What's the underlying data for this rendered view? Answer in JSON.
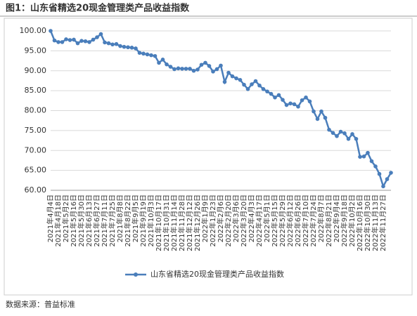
{
  "chart_data": {
    "type": "line",
    "title": "图1：山东省精选20现金管理类产品收益指数",
    "source": "数据来源：普益标准",
    "categories": [
      "2021年4月4日",
      null,
      "2021年4月18日",
      null,
      "2021年5月2日",
      null,
      "2021年5月16日",
      null,
      "2021年5月30日",
      null,
      "2021年6月13日",
      null,
      "2021年6月27日",
      null,
      "2021年7月11日",
      null,
      "2021年7月25日",
      null,
      "2021年8月8日",
      null,
      "2021年8月22日",
      null,
      "2021年9月5日",
      null,
      "2021年9月19日",
      null,
      "2021年10月3日",
      null,
      "2021年10月17日",
      null,
      "2021年10月31日",
      null,
      "2021年11月14日",
      null,
      "2021年11月28日",
      null,
      "2021年12月12日",
      null,
      "2021年12月26日",
      null,
      "2022年1月9日",
      null,
      "2022年1月23日",
      null,
      "2022年2月6日",
      null,
      "2022年2月20日",
      null,
      "2022年3月6日",
      null,
      "2022年3月20日",
      null,
      "2022年4月3日",
      null,
      "2022年4月17日",
      null,
      "2022年5月1日",
      null,
      "2022年5月15日",
      null,
      "2022年5月29日",
      null,
      "2022年6月12日",
      null,
      "2022年6月26日",
      null,
      "2022年7月10日",
      null,
      "2022年7月24日",
      null,
      "2022年8月7日",
      null,
      "2022年8月21日",
      null,
      "2022年9月4日",
      null,
      "2022年9月18日",
      null,
      "2022年10月2日",
      null,
      "2022年10月16日",
      null,
      "2022年10月30日",
      null,
      "2022年11月13日",
      null,
      "2022年11月27日",
      null,
      null
    ],
    "series": [
      {
        "name": "山东省精选20现金管理类产品收益指数",
        "color": "#4a7ebb",
        "values": [
          100.0,
          97.6,
          97.2,
          97.2,
          97.9,
          97.7,
          97.8,
          96.9,
          97.5,
          97.4,
          97.2,
          97.8,
          98.4,
          99.2,
          97.1,
          96.9,
          96.6,
          96.7,
          96.2,
          96.0,
          95.9,
          95.8,
          95.6,
          94.5,
          94.3,
          94.1,
          93.9,
          93.7,
          92.0,
          92.8,
          91.6,
          91.0,
          90.4,
          90.6,
          90.5,
          90.5,
          90.5,
          90.0,
          90.3,
          91.5,
          92.0,
          91.2,
          89.8,
          90.4,
          91.3,
          87.2,
          89.5,
          88.6,
          88.1,
          87.7,
          86.5,
          85.4,
          86.6,
          87.4,
          86.3,
          85.4,
          84.8,
          84.2,
          83.3,
          83.9,
          82.7,
          81.4,
          81.8,
          81.6,
          81.0,
          82.6,
          83.3,
          82.3,
          79.8,
          77.9,
          79.8,
          78.2,
          75.2,
          74.4,
          73.6,
          74.7,
          74.3,
          72.9,
          74.1,
          72.9,
          68.4,
          68.5,
          69.4,
          67.3,
          66.0,
          64.1,
          61.0,
          62.8,
          64.4
        ]
      }
    ],
    "ylim": [
      60,
      100
    ],
    "yticks": [
      {
        "value": 60,
        "label": "60.00"
      },
      {
        "value": 65,
        "label": "65.00"
      },
      {
        "value": 70,
        "label": "70.00"
      },
      {
        "value": 75,
        "label": "75.00"
      },
      {
        "value": 80,
        "label": "80.00"
      },
      {
        "value": 85,
        "label": "85.00"
      },
      {
        "value": 90,
        "label": "90.00"
      },
      {
        "value": 95,
        "label": "95.00"
      },
      {
        "value": 100,
        "label": "100.00"
      }
    ],
    "grid": true,
    "legend": "bottom"
  }
}
